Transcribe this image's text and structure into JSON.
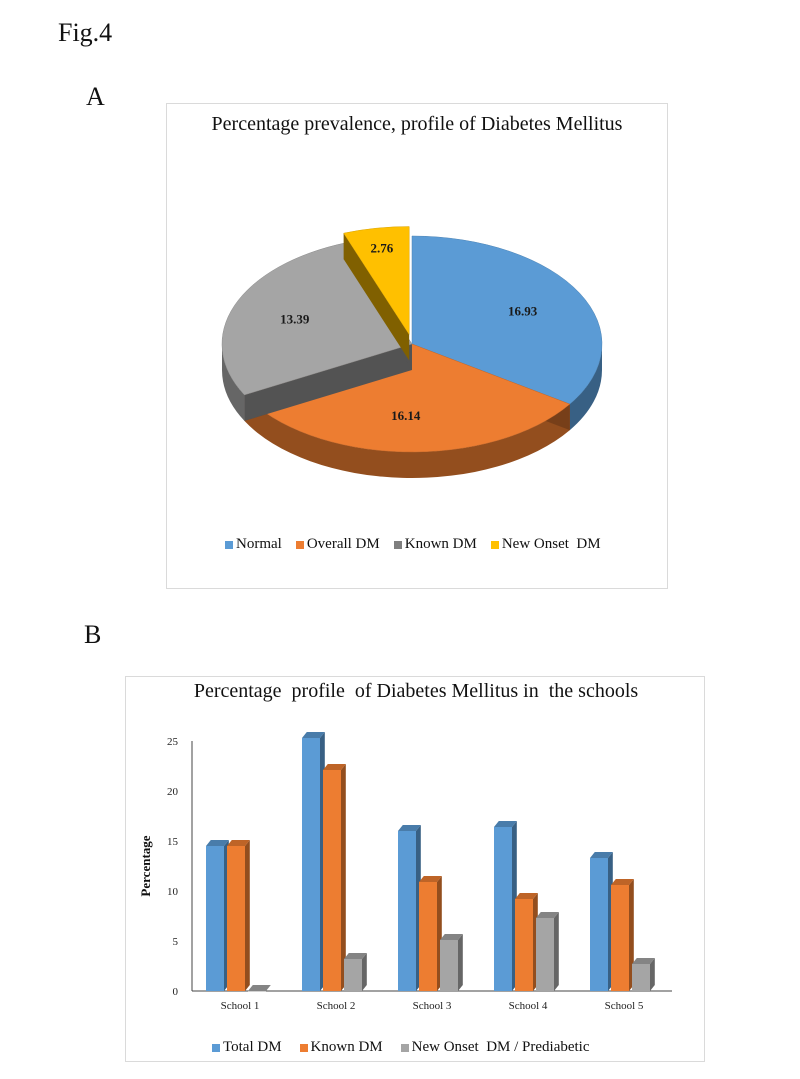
{
  "figure_label": "Fig.4",
  "chart_data": [
    {
      "panel": "A",
      "type": "pie",
      "title": "Percentage prevalence, profile of Diabetes Mellitus",
      "labels": [
        "Normal",
        "Overall DM",
        "Known DM",
        "New Onset  DM"
      ],
      "values": [
        16.93,
        16.14,
        13.39,
        2.76
      ],
      "value_labels": [
        "16.93",
        "16.14",
        "13.39",
        "2.76"
      ],
      "colors": [
        "#5b9bd5",
        "#ed7d31",
        "#a5a5a5",
        "#ffc000"
      ],
      "legend_position": "bottom"
    },
    {
      "panel": "B",
      "type": "bar",
      "title": "Percentage  profile  of Diabetes Mellitus in  the schools",
      "xlabel": "",
      "ylabel": "Percentage",
      "categories": [
        "School 1",
        "School 2",
        "School 3",
        "School 4",
        "School 5"
      ],
      "series": [
        {
          "name": "Total DM",
          "values": [
            14.5,
            25.3,
            16.0,
            16.4,
            13.3
          ],
          "color": "#5b9bd5"
        },
        {
          "name": "Known DM",
          "values": [
            14.5,
            22.1,
            10.9,
            9.2,
            10.6
          ],
          "color": "#ed7d31"
        },
        {
          "name": "New Onset  DM / Prediabetic",
          "values": [
            0.0,
            3.2,
            5.1,
            7.3,
            2.7
          ],
          "color": "#a5a5a5"
        }
      ],
      "ylim": [
        0,
        25
      ],
      "yticks": [
        "0",
        "5",
        "10",
        "15",
        "20",
        "25"
      ],
      "grid": false,
      "legend_position": "bottom"
    }
  ]
}
